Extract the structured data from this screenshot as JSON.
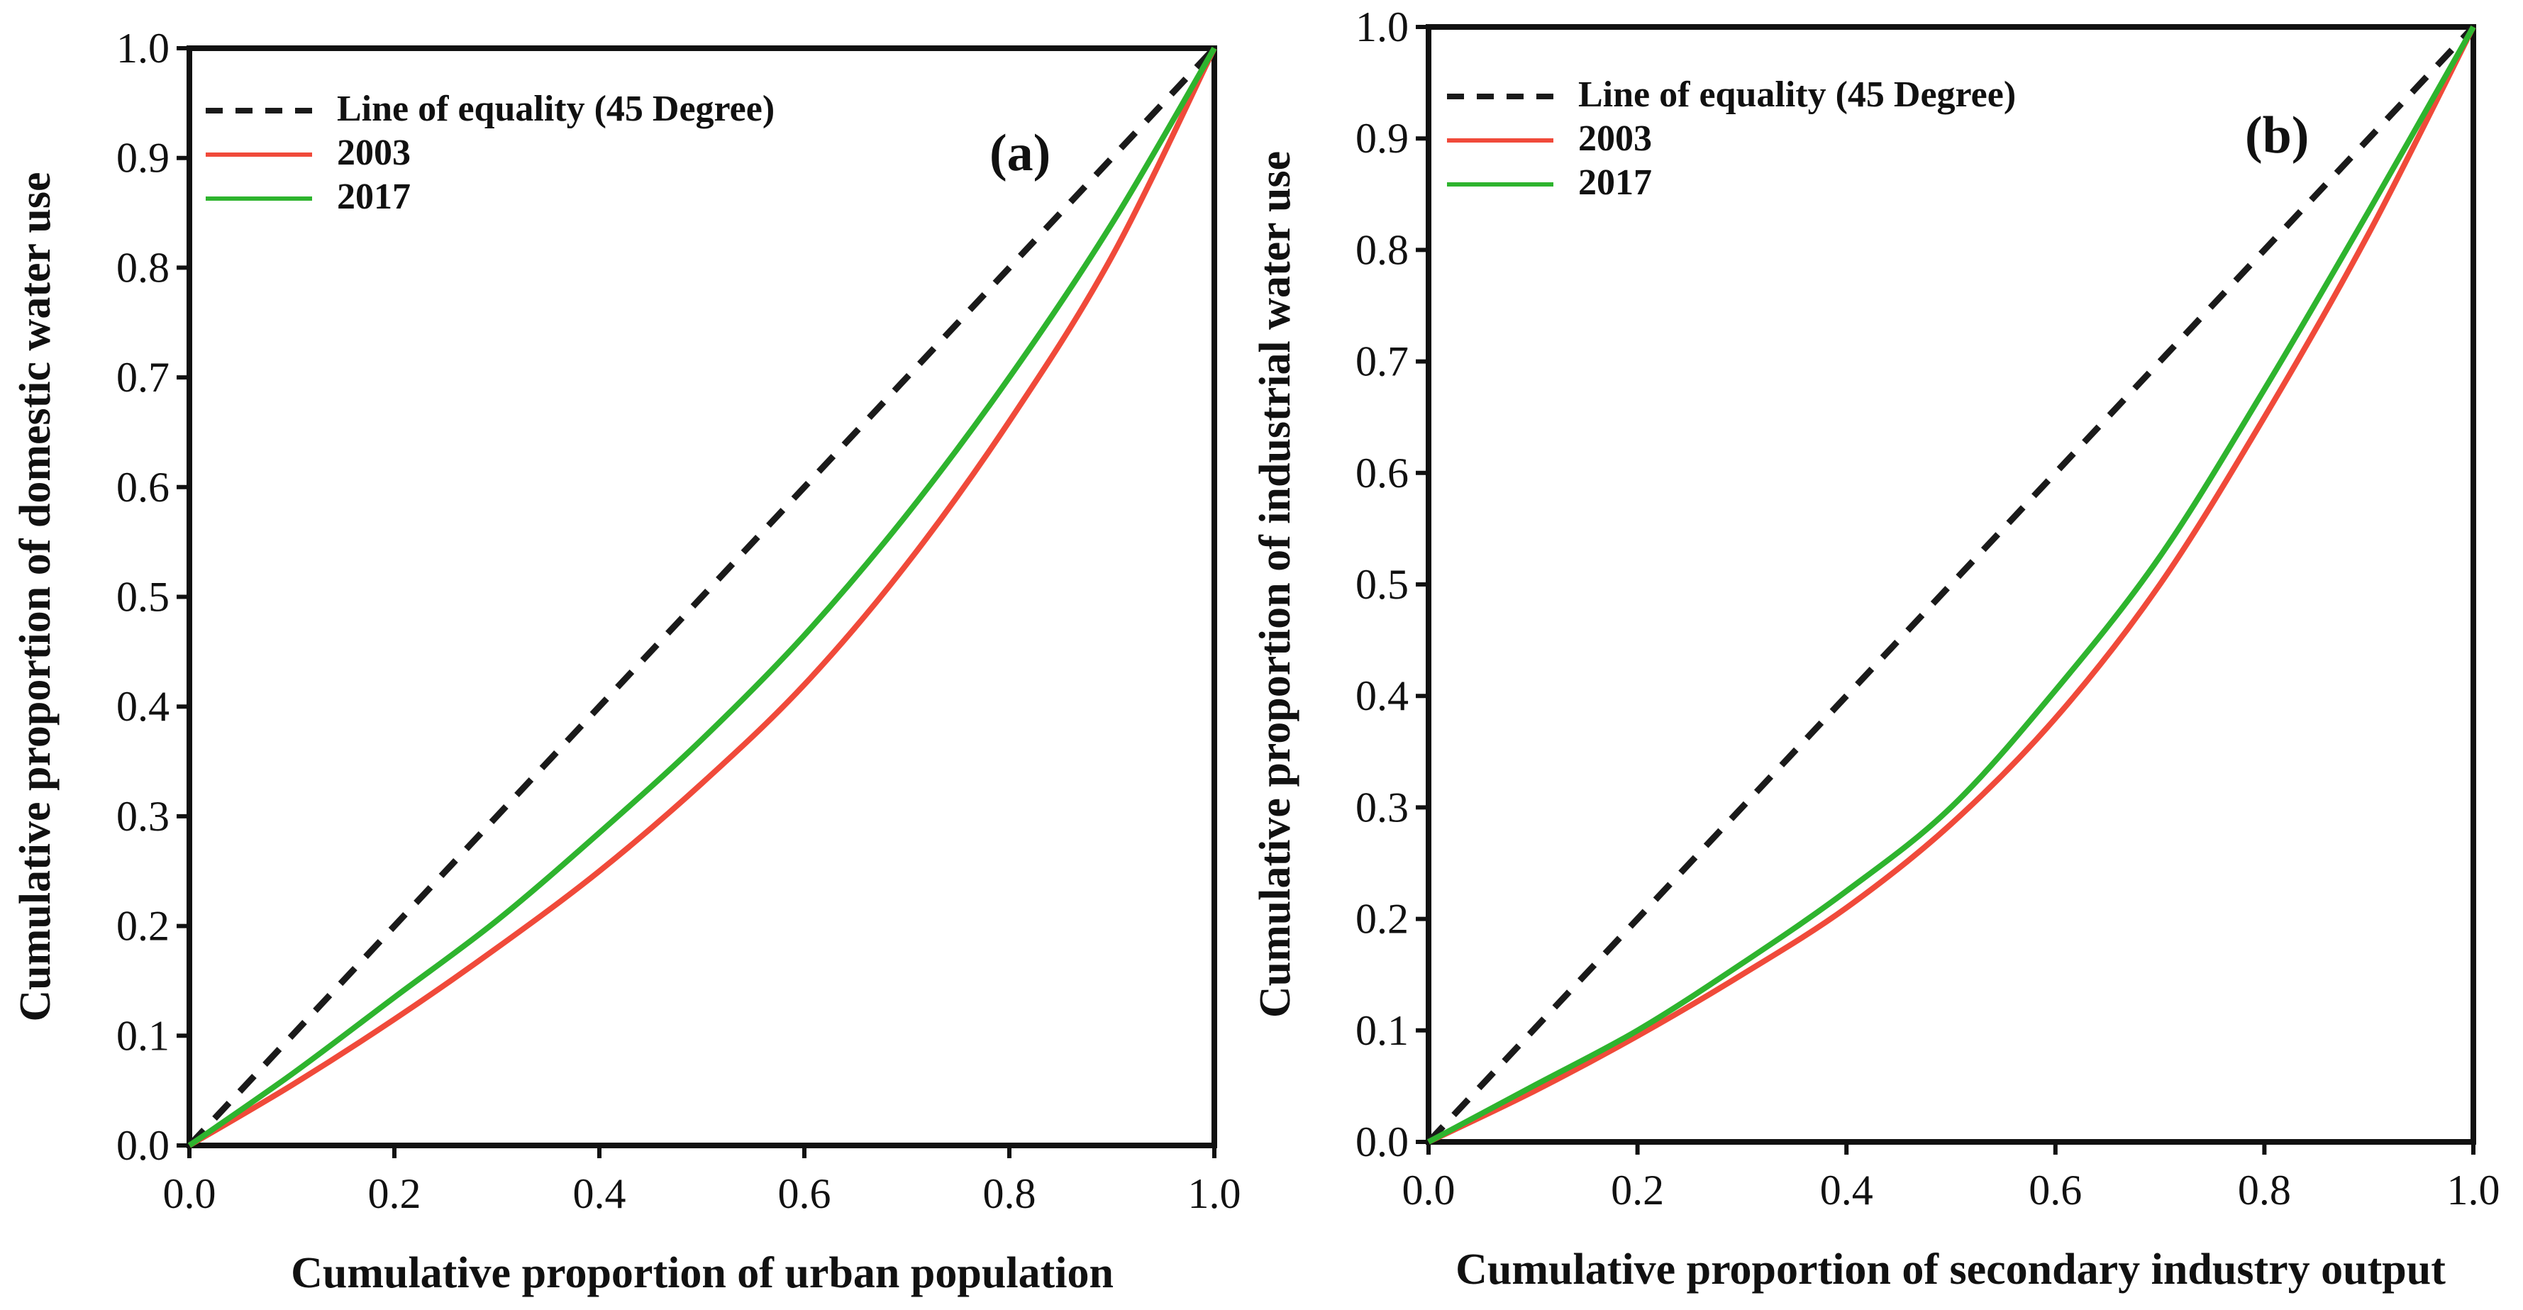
{
  "chart_data": [
    {
      "type": "line",
      "panel_label": "(a)",
      "xlabel": "Cumulative proportion of  urban population",
      "ylabel": "Cumulative proportion of  domestic water use",
      "xlim": [
        0,
        1
      ],
      "ylim": [
        0,
        1
      ],
      "x_ticks": [
        "0.0",
        "0.2",
        "0.4",
        "0.6",
        "0.8",
        "1.0"
      ],
      "y_ticks": [
        "0.0",
        "0.1",
        "0.2",
        "0.3",
        "0.4",
        "0.5",
        "0.6",
        "0.7",
        "0.8",
        "0.9",
        "1.0"
      ],
      "legend": [
        "Line of equality (45 Degree)",
        "2003",
        "2017"
      ],
      "legend_position": "top-left",
      "series": [
        {
          "name": "Line of equality (45 Degree)",
          "color": "#1a1a1a",
          "style": "dashed",
          "x": [
            0,
            1
          ],
          "y": [
            0,
            1
          ]
        },
        {
          "name": "2003",
          "color": "#f04a3a",
          "style": "solid",
          "x": [
            0,
            0.1,
            0.2,
            0.3,
            0.4,
            0.5,
            0.6,
            0.7,
            0.8,
            0.9,
            1.0
          ],
          "y": [
            0,
            0.055,
            0.115,
            0.18,
            0.25,
            0.33,
            0.42,
            0.53,
            0.66,
            0.81,
            1.0
          ]
        },
        {
          "name": "2017",
          "color": "#2eb42e",
          "style": "solid",
          "x": [
            0,
            0.1,
            0.2,
            0.3,
            0.4,
            0.5,
            0.6,
            0.7,
            0.8,
            0.9,
            1.0
          ],
          "y": [
            0,
            0.065,
            0.135,
            0.205,
            0.285,
            0.37,
            0.465,
            0.575,
            0.7,
            0.84,
            1.0
          ]
        }
      ]
    },
    {
      "type": "line",
      "panel_label": "(b)",
      "xlabel": "Cumulative proportion of  secondary industry output",
      "ylabel": "Cumulative proportion of industrial water use",
      "xlim": [
        0,
        1
      ],
      "ylim": [
        0,
        1
      ],
      "x_ticks": [
        "0.0",
        "0.2",
        "0.4",
        "0.6",
        "0.8",
        "1.0"
      ],
      "y_ticks": [
        "0.0",
        "0.1",
        "0.2",
        "0.3",
        "0.4",
        "0.5",
        "0.6",
        "0.7",
        "0.8",
        "0.9",
        "1.0"
      ],
      "legend": [
        "Line of equality (45 Degree)",
        "2003",
        "2017"
      ],
      "legend_position": "top-left",
      "series": [
        {
          "name": "Line of equality (45 Degree)",
          "color": "#1a1a1a",
          "style": "dashed",
          "x": [
            0,
            1
          ],
          "y": [
            0,
            1
          ]
        },
        {
          "name": "2003",
          "color": "#f04a3a",
          "style": "solid",
          "x": [
            0,
            0.1,
            0.2,
            0.3,
            0.4,
            0.5,
            0.6,
            0.7,
            0.8,
            0.9,
            1.0
          ],
          "y": [
            0,
            0.045,
            0.095,
            0.15,
            0.21,
            0.285,
            0.38,
            0.5,
            0.65,
            0.815,
            1.0
          ]
        },
        {
          "name": "2017",
          "color": "#2eb42e",
          "style": "solid",
          "x": [
            0,
            0.1,
            0.2,
            0.3,
            0.4,
            0.5,
            0.6,
            0.7,
            0.8,
            0.9,
            1.0
          ],
          "y": [
            0,
            0.05,
            0.1,
            0.16,
            0.225,
            0.3,
            0.405,
            0.525,
            0.675,
            0.835,
            1.0
          ]
        }
      ]
    }
  ]
}
